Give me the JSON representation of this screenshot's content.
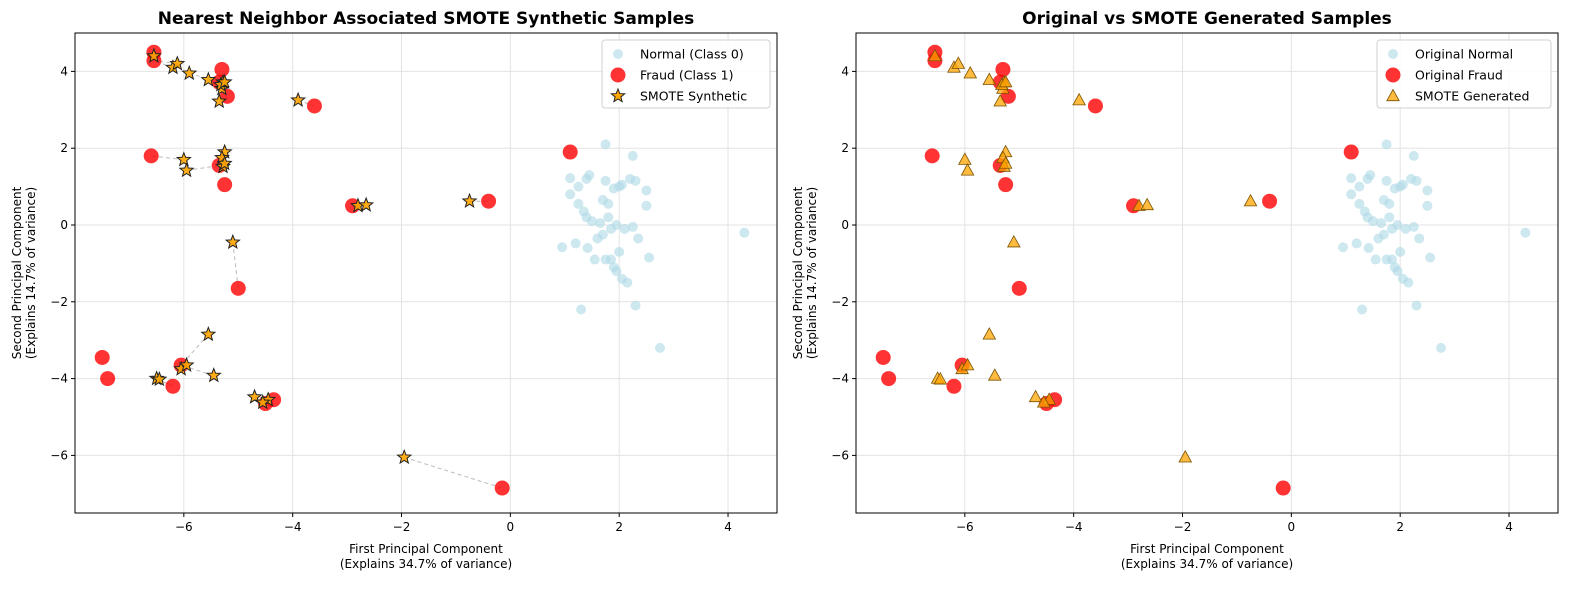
{
  "colors": {
    "normal": "#add8e6",
    "fraud": "#ff0000",
    "smote": "#ffa500",
    "edge": "#333333",
    "grid": "#e3e3e3",
    "link": "#bbbbbb"
  },
  "chart_data": [
    {
      "type": "scatter",
      "title": "Nearest Neighbor Associated SMOTE Synthetic Samples",
      "xlabel_line1": "First Principal Component",
      "xlabel_line2": "(Explains 34.7% of variance)",
      "ylabel_line1": "Second Principal Component",
      "ylabel_line2": "(Explains 14.7% of variance)",
      "xlim": [
        -8.0,
        4.9
      ],
      "ylim": [
        -7.5,
        5.0
      ],
      "xticks": [
        -6,
        -4,
        -2,
        0,
        2,
        4
      ],
      "yticks": [
        -6,
        -4,
        -2,
        0,
        2,
        4
      ],
      "grid": true,
      "legend_position": "upper-right",
      "links": true,
      "series": [
        {
          "name": "Normal (Class 0)",
          "marker": "circle",
          "points": [
            [
              0.95,
              -0.58
            ],
            [
              1.1,
              0.8
            ],
            [
              1.1,
              1.22
            ],
            [
              1.2,
              -0.48
            ],
            [
              1.25,
              0.55
            ],
            [
              1.25,
              1.0
            ],
            [
              1.3,
              -2.2
            ],
            [
              1.35,
              0.35
            ],
            [
              1.4,
              0.2
            ],
            [
              1.42,
              -0.6
            ],
            [
              1.4,
              1.2
            ],
            [
              1.45,
              1.3
            ],
            [
              1.5,
              0.1
            ],
            [
              1.55,
              -0.9
            ],
            [
              1.6,
              -0.35
            ],
            [
              1.65,
              0.05
            ],
            [
              1.7,
              -0.25
            ],
            [
              1.7,
              0.65
            ],
            [
              1.75,
              1.15
            ],
            [
              1.75,
              2.1
            ],
            [
              1.8,
              0.2
            ],
            [
              1.8,
              0.55
            ],
            [
              1.85,
              -0.1
            ],
            [
              1.85,
              -0.9
            ],
            [
              1.9,
              -1.1
            ],
            [
              1.9,
              0.95
            ],
            [
              1.95,
              -1.2
            ],
            [
              1.95,
              0.0
            ],
            [
              2.0,
              -0.7
            ],
            [
              2.0,
              1.0
            ],
            [
              2.05,
              -1.4
            ],
            [
              2.05,
              1.05
            ],
            [
              2.1,
              -0.1
            ],
            [
              2.15,
              -1.5
            ],
            [
              2.2,
              1.2
            ],
            [
              2.25,
              -0.05
            ],
            [
              2.25,
              1.8
            ],
            [
              2.3,
              1.15
            ],
            [
              2.3,
              -2.1
            ],
            [
              2.35,
              -0.35
            ],
            [
              2.5,
              0.5
            ],
            [
              2.5,
              0.9
            ],
            [
              2.55,
              -0.85
            ],
            [
              2.75,
              -3.2
            ],
            [
              4.3,
              -0.2
            ],
            [
              1.75,
              -0.9
            ]
          ]
        },
        {
          "name": "Fraud (Class 1)",
          "marker": "circle",
          "points": [
            [
              -6.55,
              4.5
            ],
            [
              -6.55,
              4.28
            ],
            [
              -5.3,
              4.05
            ],
            [
              -5.35,
              3.72
            ],
            [
              -5.2,
              3.35
            ],
            [
              -3.6,
              3.1
            ],
            [
              -6.6,
              1.8
            ],
            [
              -5.35,
              1.55
            ],
            [
              -5.25,
              1.05
            ],
            [
              1.1,
              1.9
            ],
            [
              -2.9,
              0.5
            ],
            [
              -0.4,
              0.62
            ],
            [
              -5.0,
              -1.65
            ],
            [
              -7.5,
              -3.45
            ],
            [
              -7.4,
              -4.0
            ],
            [
              -6.05,
              -3.65
            ],
            [
              -6.2,
              -4.2
            ],
            [
              -4.5,
              -4.65
            ],
            [
              -4.35,
              -4.55
            ],
            [
              -0.15,
              -6.85
            ]
          ]
        },
        {
          "name": "SMOTE Synthetic",
          "marker": "star",
          "points": [
            [
              -6.55,
              4.4
            ],
            [
              -6.2,
              4.1
            ],
            [
              -6.12,
              4.2
            ],
            [
              -5.9,
              3.95
            ],
            [
              -5.55,
              3.78
            ],
            [
              -5.3,
              3.55
            ],
            [
              -5.28,
              3.72
            ],
            [
              -5.32,
              3.65
            ],
            [
              -5.25,
              3.72
            ],
            [
              -5.35,
              3.22
            ],
            [
              -3.9,
              3.25
            ],
            [
              -6.0,
              1.7
            ],
            [
              -5.95,
              1.42
            ],
            [
              -5.25,
              1.9
            ],
            [
              -5.3,
              1.75
            ],
            [
              -5.28,
              1.52
            ],
            [
              -5.25,
              1.6
            ],
            [
              -2.8,
              0.5
            ],
            [
              -2.65,
              0.52
            ],
            [
              -0.75,
              0.62
            ],
            [
              -5.1,
              -0.45
            ],
            [
              -5.55,
              -2.85
            ],
            [
              -6.5,
              -4.0
            ],
            [
              -6.45,
              -4.02
            ],
            [
              -6.05,
              -3.75
            ],
            [
              -5.95,
              -3.65
            ],
            [
              -5.45,
              -3.92
            ],
            [
              -4.7,
              -4.48
            ],
            [
              -4.45,
              -4.55
            ],
            [
              -4.55,
              -4.62
            ],
            [
              -1.95,
              -6.05
            ]
          ]
        }
      ]
    },
    {
      "type": "scatter",
      "title": "Original vs SMOTE Generated Samples",
      "xlabel_line1": "First Principal Component",
      "xlabel_line2": "(Explains 34.7% of variance)",
      "ylabel_line1": "Second Principal Component",
      "ylabel_line2": "(Explains 14.7% of variance)",
      "xlim": [
        -8.0,
        4.9
      ],
      "ylim": [
        -7.5,
        5.0
      ],
      "xticks": [
        -6,
        -4,
        -2,
        0,
        2,
        4
      ],
      "yticks": [
        -6,
        -4,
        -2,
        0,
        2,
        4
      ],
      "grid": true,
      "legend_position": "upper-right",
      "links": false,
      "series": [
        {
          "name": "Original Normal",
          "marker": "circle",
          "points": [
            [
              0.95,
              -0.58
            ],
            [
              1.1,
              0.8
            ],
            [
              1.1,
              1.22
            ],
            [
              1.2,
              -0.48
            ],
            [
              1.25,
              0.55
            ],
            [
              1.25,
              1.0
            ],
            [
              1.3,
              -2.2
            ],
            [
              1.35,
              0.35
            ],
            [
              1.4,
              0.2
            ],
            [
              1.42,
              -0.6
            ],
            [
              1.4,
              1.2
            ],
            [
              1.45,
              1.3
            ],
            [
              1.5,
              0.1
            ],
            [
              1.55,
              -0.9
            ],
            [
              1.6,
              -0.35
            ],
            [
              1.65,
              0.05
            ],
            [
              1.7,
              -0.25
            ],
            [
              1.7,
              0.65
            ],
            [
              1.75,
              1.15
            ],
            [
              1.75,
              2.1
            ],
            [
              1.8,
              0.2
            ],
            [
              1.8,
              0.55
            ],
            [
              1.85,
              -0.1
            ],
            [
              1.85,
              -0.9
            ],
            [
              1.9,
              -1.1
            ],
            [
              1.9,
              0.95
            ],
            [
              1.95,
              -1.2
            ],
            [
              1.95,
              0.0
            ],
            [
              2.0,
              -0.7
            ],
            [
              2.0,
              1.0
            ],
            [
              2.05,
              -1.4
            ],
            [
              2.05,
              1.05
            ],
            [
              2.1,
              -0.1
            ],
            [
              2.15,
              -1.5
            ],
            [
              2.2,
              1.2
            ],
            [
              2.25,
              -0.05
            ],
            [
              2.25,
              1.8
            ],
            [
              2.3,
              1.15
            ],
            [
              2.3,
              -2.1
            ],
            [
              2.35,
              -0.35
            ],
            [
              2.5,
              0.5
            ],
            [
              2.5,
              0.9
            ],
            [
              2.55,
              -0.85
            ],
            [
              2.75,
              -3.2
            ],
            [
              4.3,
              -0.2
            ],
            [
              1.75,
              -0.9
            ]
          ]
        },
        {
          "name": "Original Fraud",
          "marker": "circle",
          "points": [
            [
              -6.55,
              4.5
            ],
            [
              -6.55,
              4.28
            ],
            [
              -5.3,
              4.05
            ],
            [
              -5.35,
              3.72
            ],
            [
              -5.2,
              3.35
            ],
            [
              -3.6,
              3.1
            ],
            [
              -6.6,
              1.8
            ],
            [
              -5.35,
              1.55
            ],
            [
              -5.25,
              1.05
            ],
            [
              1.1,
              1.9
            ],
            [
              -2.9,
              0.5
            ],
            [
              -0.4,
              0.62
            ],
            [
              -5.0,
              -1.65
            ],
            [
              -7.5,
              -3.45
            ],
            [
              -7.4,
              -4.0
            ],
            [
              -6.05,
              -3.65
            ],
            [
              -6.2,
              -4.2
            ],
            [
              -4.5,
              -4.65
            ],
            [
              -4.35,
              -4.55
            ],
            [
              -0.15,
              -6.85
            ]
          ]
        },
        {
          "name": "SMOTE Generated",
          "marker": "triangle",
          "points": [
            [
              -6.55,
              4.4
            ],
            [
              -6.2,
              4.1
            ],
            [
              -6.12,
              4.2
            ],
            [
              -5.9,
              3.95
            ],
            [
              -5.55,
              3.78
            ],
            [
              -5.3,
              3.55
            ],
            [
              -5.28,
              3.72
            ],
            [
              -5.32,
              3.65
            ],
            [
              -5.25,
              3.72
            ],
            [
              -5.35,
              3.22
            ],
            [
              -3.9,
              3.25
            ],
            [
              -6.0,
              1.7
            ],
            [
              -5.95,
              1.42
            ],
            [
              -5.25,
              1.9
            ],
            [
              -5.3,
              1.75
            ],
            [
              -5.28,
              1.52
            ],
            [
              -5.25,
              1.6
            ],
            [
              -2.8,
              0.5
            ],
            [
              -2.65,
              0.52
            ],
            [
              -0.75,
              0.62
            ],
            [
              -5.1,
              -0.45
            ],
            [
              -5.55,
              -2.85
            ],
            [
              -6.5,
              -4.0
            ],
            [
              -6.45,
              -4.02
            ],
            [
              -6.05,
              -3.75
            ],
            [
              -5.95,
              -3.65
            ],
            [
              -5.45,
              -3.92
            ],
            [
              -4.7,
              -4.48
            ],
            [
              -4.45,
              -4.55
            ],
            [
              -4.55,
              -4.62
            ],
            [
              -1.95,
              -6.05
            ]
          ]
        }
      ]
    }
  ]
}
